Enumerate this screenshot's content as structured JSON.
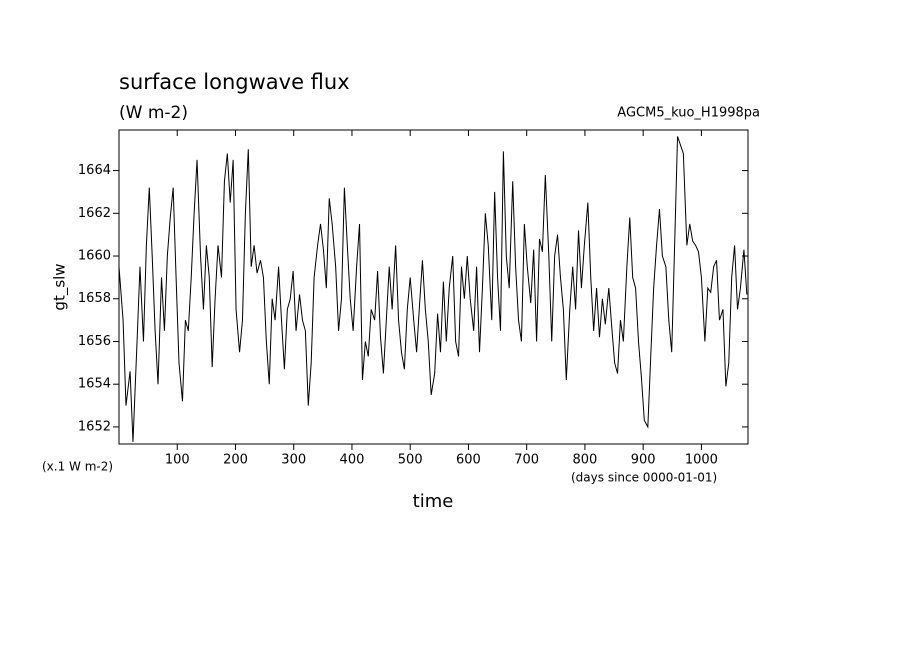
{
  "chart_data": {
    "type": "line",
    "title": "surface longwave flux",
    "subtitle": "(W m-2)",
    "annotation": "AGCM5_kuo_H1998pa",
    "ylabel": "gt_slw",
    "yunit": "(x.1 W m-2)",
    "xlabel": "time",
    "xunit": "(days since 0000-01-01)",
    "color": "#000000",
    "xlim": [
      0,
      1080
    ],
    "ylim": [
      1651.2,
      1665.9
    ],
    "xticks": [
      100,
      200,
      300,
      400,
      500,
      600,
      700,
      800,
      900,
      1000
    ],
    "yticks": [
      1652,
      1654,
      1656,
      1658,
      1660,
      1662,
      1664
    ],
    "x": [
      0,
      7,
      12,
      19,
      24,
      31,
      36,
      42,
      47,
      52,
      57,
      62,
      67,
      73,
      78,
      83,
      88,
      93,
      98,
      103,
      109,
      114,
      119,
      124,
      129,
      134,
      140,
      145,
      150,
      155,
      160,
      165,
      170,
      176,
      181,
      186,
      191,
      196,
      201,
      207,
      212,
      217,
      222,
      227,
      232,
      237,
      243,
      248,
      253,
      258,
      263,
      268,
      274,
      279,
      284,
      289,
      294,
      299,
      304,
      310,
      315,
      320,
      325,
      330,
      335,
      341,
      346,
      351,
      356,
      361,
      366,
      372,
      377,
      382,
      387,
      392,
      397,
      402,
      408,
      413,
      418,
      423,
      428,
      433,
      439,
      444,
      449,
      454,
      459,
      464,
      469,
      475,
      480,
      485,
      490,
      495,
      500,
      506,
      511,
      516,
      521,
      526,
      531,
      536,
      542,
      547,
      552,
      557,
      562,
      567,
      573,
      578,
      583,
      588,
      593,
      598,
      603,
      609,
      614,
      619,
      624,
      629,
      634,
      640,
      645,
      650,
      655,
      660,
      665,
      670,
      676,
      681,
      686,
      691,
      696,
      701,
      707,
      712,
      717,
      722,
      727,
      732,
      738,
      743,
      748,
      753,
      758,
      763,
      768,
      774,
      779,
      784,
      789,
      794,
      799,
      805,
      810,
      815,
      820,
      825,
      830,
      835,
      841,
      846,
      851,
      856,
      861,
      866,
      872,
      877,
      882,
      887,
      892,
      897,
      902,
      908,
      913,
      918,
      923,
      928,
      933,
      939,
      944,
      949,
      954,
      959,
      964,
      969,
      975,
      980,
      985,
      990,
      995,
      1000,
      1006,
      1011,
      1016,
      1021,
      1026,
      1031,
      1037,
      1042,
      1047,
      1052,
      1057,
      1062,
      1067,
      1073,
      1078
    ],
    "values": [
      1659.5,
      1657,
      1653,
      1654.6,
      1651.3,
      1656,
      1659.5,
      1656,
      1660.5,
      1663.2,
      1660,
      1656.5,
      1654,
      1659,
      1656.5,
      1660,
      1661.8,
      1663.2,
      1659,
      1655,
      1653.2,
      1657,
      1656.5,
      1659,
      1662,
      1664.5,
      1660,
      1657.5,
      1660.5,
      1659,
      1654.8,
      1658,
      1660.5,
      1659,
      1663.5,
      1664.8,
      1662.5,
      1664.5,
      1657.5,
      1655.5,
      1657,
      1662,
      1665,
      1659.5,
      1660.5,
      1659.2,
      1659.8,
      1659,
      1656,
      1654,
      1658,
      1657,
      1659.5,
      1657,
      1654.7,
      1657.5,
      1658,
      1659.3,
      1656.5,
      1658.2,
      1657,
      1656.5,
      1653,
      1655,
      1659,
      1660.5,
      1661.5,
      1660.3,
      1658.5,
      1662.7,
      1661.5,
      1659.5,
      1656.5,
      1658,
      1663.2,
      1660.5,
      1658,
      1656.5,
      1659.5,
      1661.5,
      1654.2,
      1656,
      1655.3,
      1657.5,
      1657,
      1659.3,
      1656.2,
      1654.5,
      1657,
      1659.5,
      1657.5,
      1660.5,
      1657,
      1655.5,
      1654.7,
      1657.5,
      1659,
      1657,
      1655.5,
      1657.7,
      1659.8,
      1657.5,
      1656,
      1653.5,
      1654.5,
      1657.3,
      1655.5,
      1658.8,
      1656,
      1658.5,
      1660,
      1656,
      1655.3,
      1659.5,
      1658,
      1660,
      1658,
      1656.5,
      1659.5,
      1655.5,
      1658.5,
      1662,
      1660.5,
      1657,
      1663,
      1659,
      1656.5,
      1664.9,
      1660,
      1658.5,
      1663.5,
      1659.5,
      1657,
      1656,
      1661.5,
      1659.5,
      1657.8,
      1660.3,
      1656,
      1660.8,
      1660.2,
      1663.8,
      1660,
      1656,
      1660,
      1661,
      1659,
      1657.5,
      1654.2,
      1657.5,
      1659.5,
      1657.5,
      1661.2,
      1658.5,
      1660.5,
      1662.5,
      1659,
      1656.5,
      1658.5,
      1656.2,
      1658,
      1656.8,
      1658.5,
      1656.7,
      1655,
      1654.5,
      1657,
      1656,
      1659.5,
      1661.8,
      1659,
      1658.5,
      1656,
      1654.3,
      1652.3,
      1652,
      1655.3,
      1658.5,
      1660.5,
      1662.2,
      1660,
      1659.5,
      1657,
      1655.5,
      1660.5,
      1665.6,
      1665.2,
      1664.8,
      1660.5,
      1661.5,
      1660.7,
      1660.5,
      1660.2,
      1659,
      1656,
      1658.5,
      1658.3,
      1659.5,
      1659.8,
      1657,
      1657.5,
      1653.9,
      1655,
      1659,
      1660.5,
      1657.5,
      1658.5,
      1660.3,
      1658.2
    ]
  }
}
